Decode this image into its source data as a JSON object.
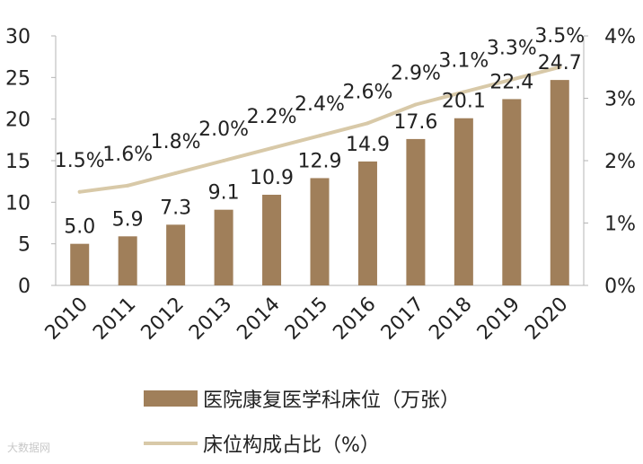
{
  "chart_data": {
    "type": "bar",
    "categories": [
      "2010",
      "2011",
      "2012",
      "2013",
      "2014",
      "2015",
      "2016",
      "2017",
      "2018",
      "2019",
      "2020"
    ],
    "series": [
      {
        "name": "医院康复医学科床位（万张）",
        "kind": "bar",
        "axis": "left",
        "color": "#a07f5a",
        "values": [
          5.0,
          5.9,
          7.3,
          9.1,
          10.9,
          12.9,
          14.9,
          17.6,
          20.1,
          22.4,
          24.7
        ],
        "labels": [
          "5.0",
          "5.9",
          "7.3",
          "9.1",
          "10.9",
          "12.9",
          "14.9",
          "17.6",
          "20.1",
          "22.4",
          "24.7"
        ]
      },
      {
        "name": "床位构成占比（%）",
        "kind": "line",
        "axis": "right",
        "color": "#d8c9a8",
        "values": [
          1.5,
          1.6,
          1.8,
          2.0,
          2.2,
          2.4,
          2.6,
          2.9,
          3.1,
          3.3,
          3.5
        ],
        "labels": [
          "1.5%",
          "1.6%",
          "1.8%",
          "2.0%",
          "2.2%",
          "2.4%",
          "2.6%",
          "2.9%",
          "3.1%",
          "3.3%",
          "3.5%"
        ]
      }
    ],
    "y_left": {
      "ylim": [
        0,
        30
      ],
      "ticks": [
        "0",
        "5",
        "10",
        "15",
        "20",
        "25",
        "30"
      ]
    },
    "y_right": {
      "ylim": [
        0,
        4
      ],
      "ticks": [
        "0%",
        "1%",
        "2%",
        "3%",
        "4%"
      ]
    },
    "grid": false,
    "legend_position": "bottom",
    "watermark": "大数据网"
  }
}
